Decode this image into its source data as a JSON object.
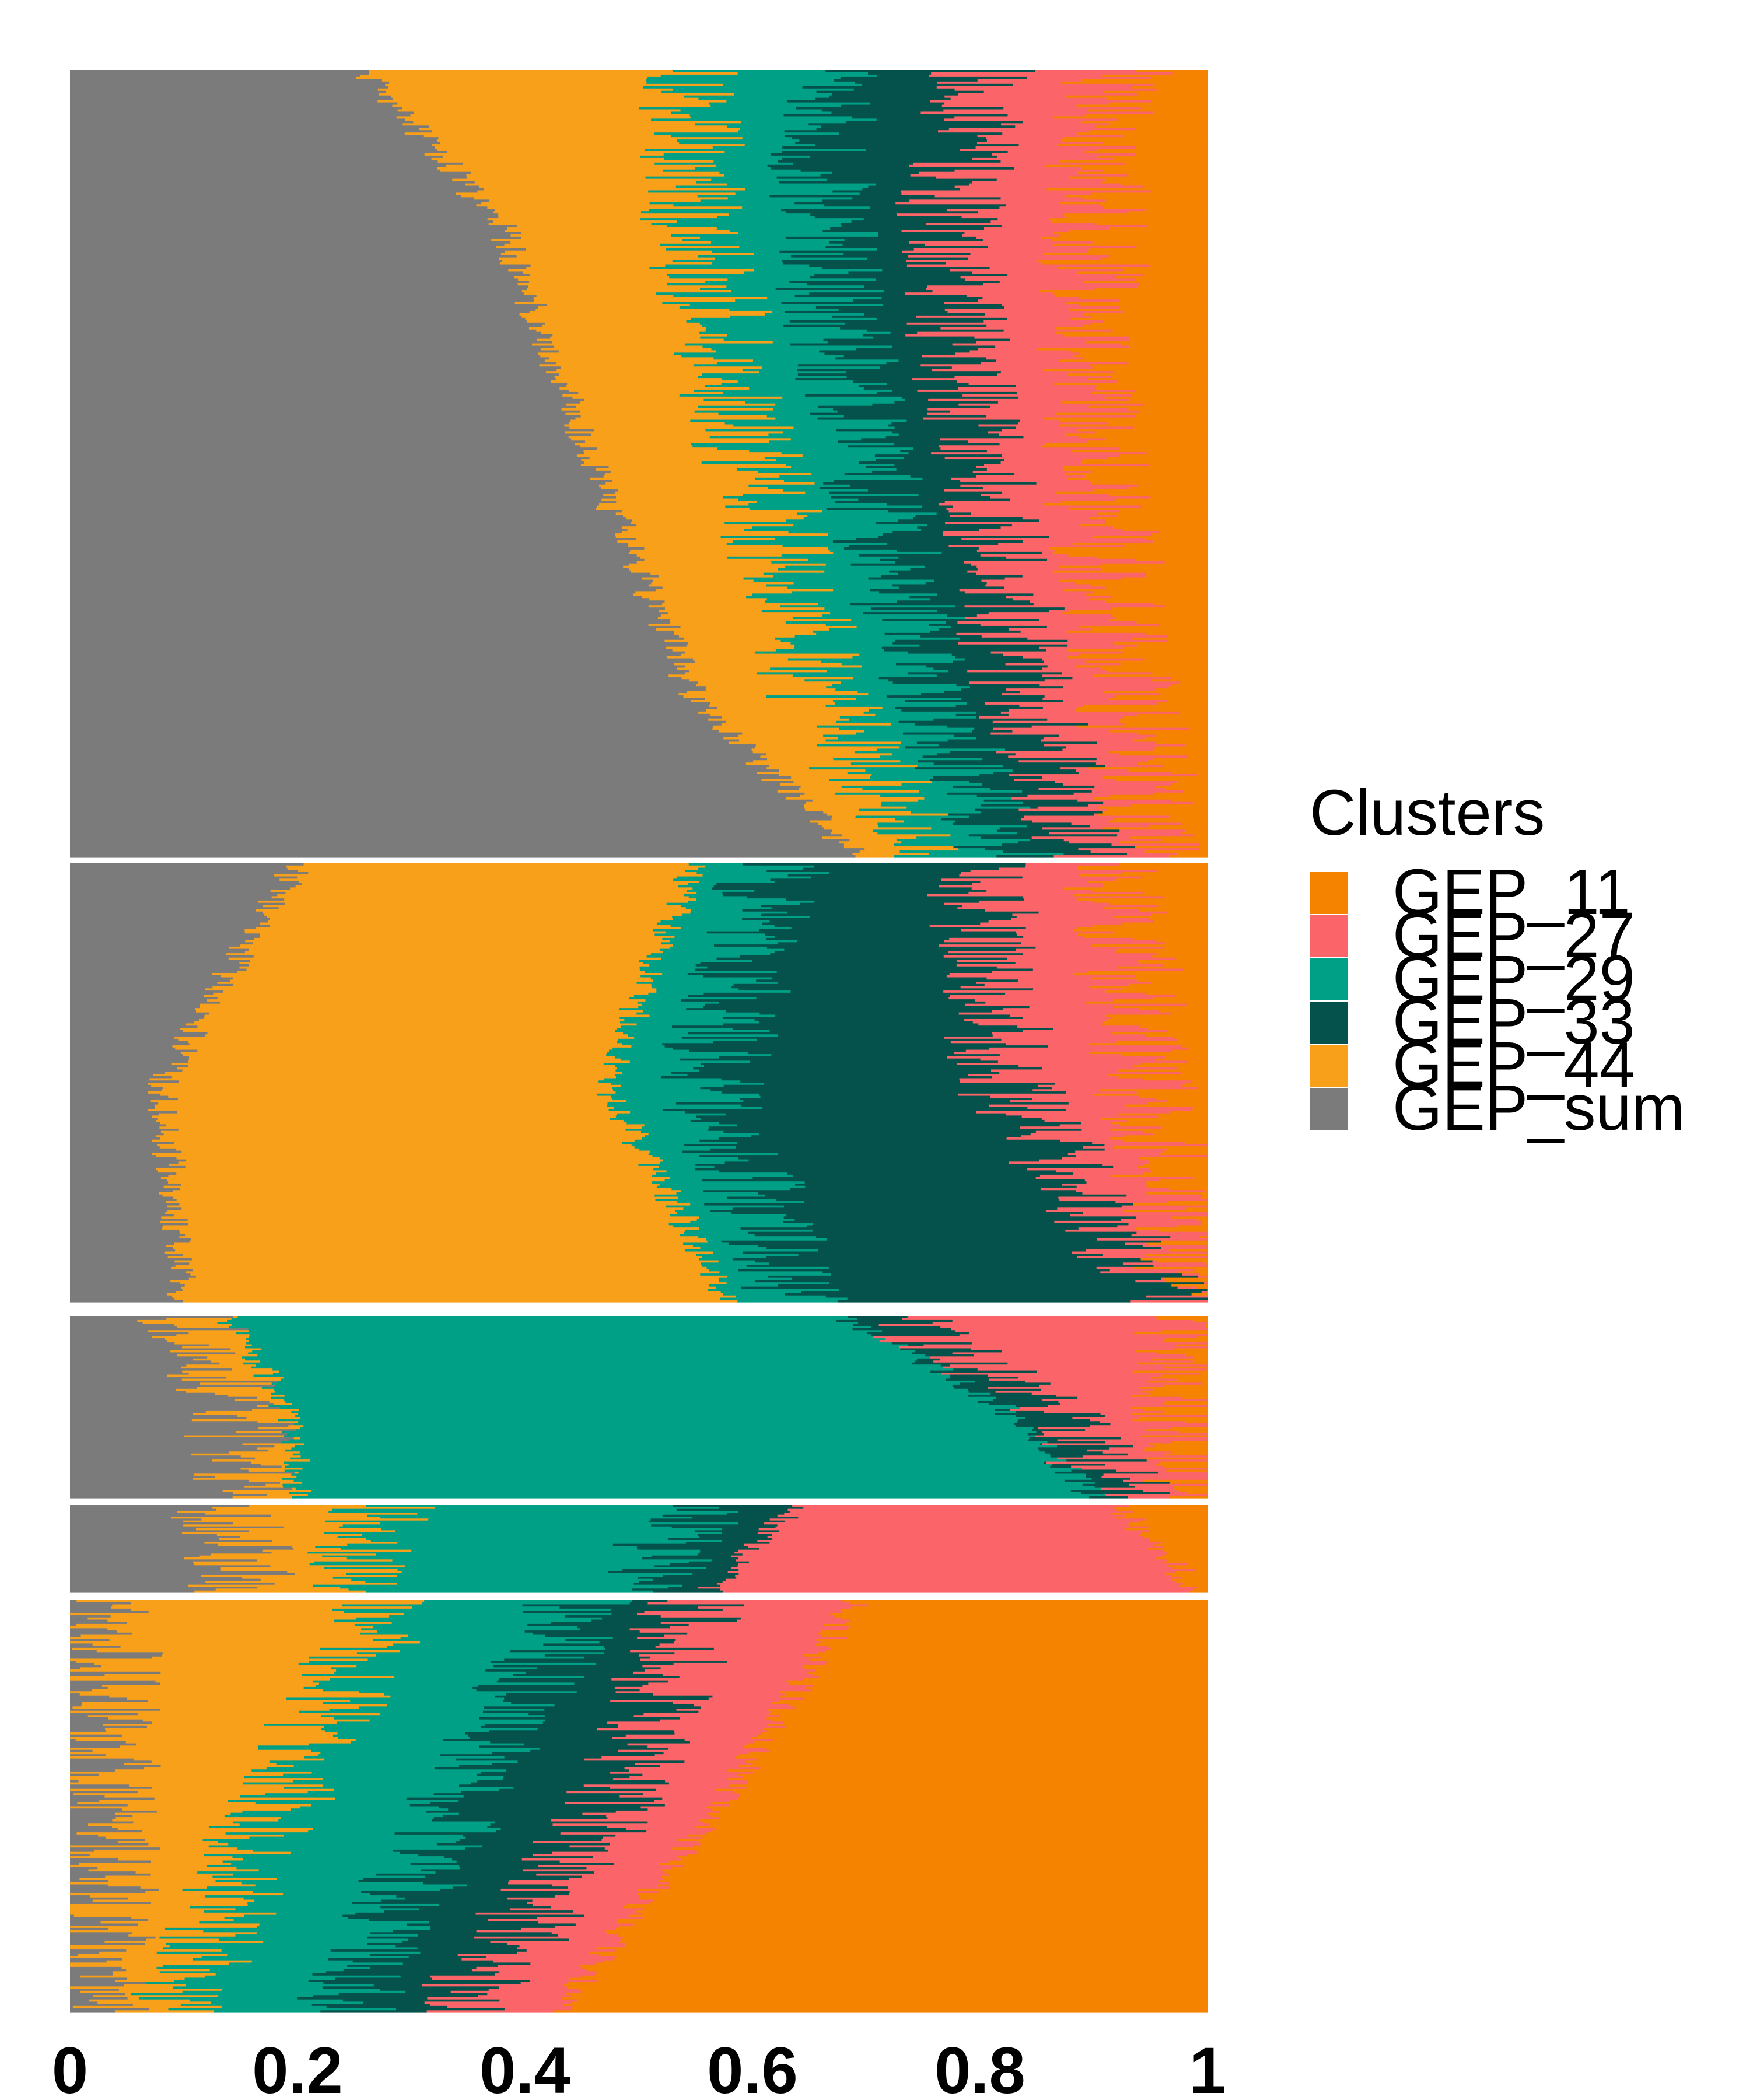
{
  "chart_data": {
    "type": "bar",
    "orientation": "horizontal-stacked-proportion",
    "x_ticks": [
      "0",
      "0.2",
      "0.4",
      "0.6",
      "0.8",
      "1"
    ],
    "xlim": [
      0,
      1
    ],
    "legend": {
      "title": "Clusters",
      "placement": "right",
      "items": [
        {
          "label": "GEP_11",
          "color": "#f58300"
        },
        {
          "label": "GEP_27",
          "color": "#fb6469"
        },
        {
          "label": "GEP_29",
          "color": "#00a087"
        },
        {
          "label": "GEP_33",
          "color": "#04524b"
        },
        {
          "label": "GEP_44",
          "color": "#f8a01a"
        },
        {
          "label": "GEP_sum",
          "color": "#7b7b7b"
        }
      ]
    },
    "stack_order": [
      "GEP_sum",
      "GEP_44",
      "GEP_29",
      "GEP_33",
      "GEP_27",
      "GEP_11"
    ],
    "panels": [
      {
        "name": "GEP_sum",
        "cumulative_profile": [
          {
            "row": 0.0,
            "GEP_sum": 0.26,
            "GEP_44": 0.55,
            "GEP_29": 0.66,
            "GEP_33": 0.8,
            "GEP_27": 0.92
          },
          {
            "row": 0.2,
            "GEP_sum": 0.38,
            "GEP_44": 0.55,
            "GEP_29": 0.66,
            "GEP_33": 0.77,
            "GEP_27": 0.9
          },
          {
            "row": 0.5,
            "GEP_sum": 0.46,
            "GEP_44": 0.6,
            "GEP_29": 0.7,
            "GEP_33": 0.8,
            "GEP_27": 0.9
          },
          {
            "row": 0.8,
            "GEP_sum": 0.55,
            "GEP_44": 0.66,
            "GEP_29": 0.76,
            "GEP_33": 0.84,
            "GEP_27": 0.93
          },
          {
            "row": 1.0,
            "GEP_sum": 0.69,
            "GEP_44": 0.75,
            "GEP_29": 0.83,
            "GEP_33": 0.89,
            "GEP_27": 0.96
          }
        ]
      },
      {
        "name": "GEP_44",
        "cumulative_profile": [
          {
            "row": 0.0,
            "GEP_sum": 0.2,
            "GEP_44": 0.55,
            "GEP_29": 0.62,
            "GEP_33": 0.8,
            "GEP_27": 0.92
          },
          {
            "row": 0.5,
            "GEP_sum": 0.08,
            "GEP_44": 0.47,
            "GEP_29": 0.56,
            "GEP_33": 0.82,
            "GEP_27": 0.94
          },
          {
            "row": 1.0,
            "GEP_sum": 0.1,
            "GEP_44": 0.58,
            "GEP_29": 0.64,
            "GEP_33": 0.96,
            "GEP_27": 0.99
          }
        ]
      },
      {
        "name": "GEP_29",
        "cumulative_profile": [
          {
            "row": 0.0,
            "GEP_sum": 0.1,
            "GEP_44": 0.14,
            "GEP_29": 0.68,
            "GEP_33": 0.72,
            "GEP_27": 0.97
          },
          {
            "row": 0.5,
            "GEP_sum": 0.15,
            "GEP_44": 0.19,
            "GEP_29": 0.82,
            "GEP_33": 0.86,
            "GEP_27": 0.98
          },
          {
            "row": 1.0,
            "GEP_sum": 0.15,
            "GEP_44": 0.2,
            "GEP_29": 0.9,
            "GEP_33": 0.93,
            "GEP_27": 0.995
          }
        ]
      },
      {
        "name": "GEP_27",
        "cumulative_profile": [
          {
            "row": 0.0,
            "GEP_sum": 0.13,
            "GEP_44": 0.28,
            "GEP_29": 0.55,
            "GEP_33": 0.64,
            "GEP_27": 0.92
          },
          {
            "row": 0.5,
            "GEP_sum": 0.15,
            "GEP_44": 0.26,
            "GEP_29": 0.52,
            "GEP_33": 0.6,
            "GEP_27": 0.96
          },
          {
            "row": 1.0,
            "GEP_sum": 0.15,
            "GEP_44": 0.24,
            "GEP_29": 0.5,
            "GEP_33": 0.56,
            "GEP_27": 0.99
          }
        ]
      },
      {
        "name": "GEP_11",
        "cumulative_profile": [
          {
            "row": 0.0,
            "GEP_sum": 0.03,
            "GEP_44": 0.28,
            "GEP_29": 0.45,
            "GEP_33": 0.55,
            "GEP_27": 0.69
          },
          {
            "row": 0.5,
            "GEP_sum": 0.04,
            "GEP_44": 0.18,
            "GEP_29": 0.34,
            "GEP_33": 0.48,
            "GEP_27": 0.57
          },
          {
            "row": 1.0,
            "GEP_sum": 0.02,
            "GEP_44": 0.09,
            "GEP_29": 0.24,
            "GEP_33": 0.34,
            "GEP_27": 0.43
          }
        ]
      }
    ],
    "xlabel": "",
    "ylabel": "",
    "title": ""
  }
}
